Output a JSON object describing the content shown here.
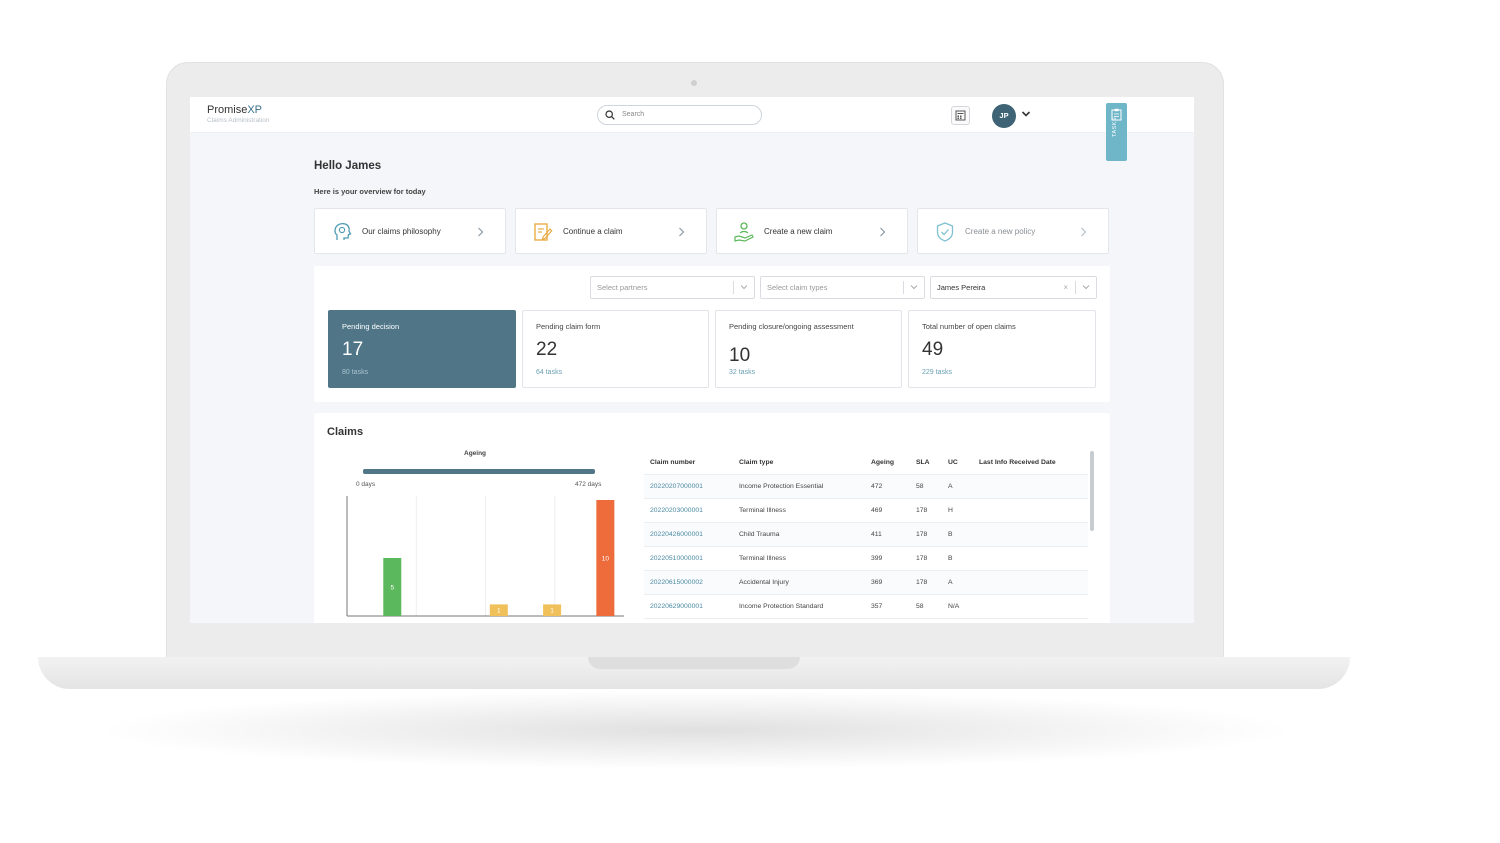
{
  "header": {
    "brand_main": "Promise",
    "brand_accent": "XP",
    "brand_sub": "Claims Administration",
    "search_placeholder": "Search",
    "avatar_initials": "JP",
    "tasks_tab": "TASKS"
  },
  "greeting": "Hello James",
  "overview": "Here is your overview for today",
  "actions": [
    {
      "label": "Our claims philosophy",
      "icon": "brain-head-icon"
    },
    {
      "label": "Continue a claim",
      "icon": "edit-document-icon"
    },
    {
      "label": "Create a new claim",
      "icon": "hand-person-icon"
    },
    {
      "label": "Create a new policy",
      "icon": "shield-check-icon"
    }
  ],
  "filters": {
    "partners_placeholder": "Select partners",
    "claim_types_placeholder": "Select claim types",
    "assignee_value": "James Pereira",
    "clear_symbol": "×"
  },
  "stats": [
    {
      "label": "Pending decision",
      "value": "17",
      "tasks": "80 tasks"
    },
    {
      "label": "Pending claim form",
      "value": "22",
      "tasks": "64 tasks"
    },
    {
      "label": "Pending closure/ongoing assessment",
      "value": "10",
      "tasks": "32 tasks"
    },
    {
      "label": "Total number of open claims",
      "value": "49",
      "tasks": "229 tasks"
    }
  ],
  "claims": {
    "title": "Claims",
    "ageing_label": "Ageing",
    "ageing_min": "0 days",
    "ageing_max": "472 days",
    "table": {
      "headers": [
        "Claim number",
        "Claim type",
        "Ageing",
        "SLA",
        "UC",
        "Last Info Received Date"
      ],
      "rows": [
        [
          "20220207000001",
          "Income Protection Essential",
          "472",
          "58",
          "A",
          ""
        ],
        [
          "20220203000001",
          "Terminal Illness",
          "469",
          "178",
          "H",
          ""
        ],
        [
          "20220426000001",
          "Child Trauma",
          "411",
          "178",
          "B",
          ""
        ],
        [
          "20220510000001",
          "Terminal Illness",
          "399",
          "178",
          "B",
          ""
        ],
        [
          "20220615000002",
          "Accidental Injury",
          "369",
          "178",
          "A",
          ""
        ],
        [
          "20220629000001",
          "Income Protection Standard",
          "357",
          "58",
          "N/A",
          ""
        ]
      ]
    }
  },
  "chart_data": {
    "type": "bar",
    "values": [
      5,
      0,
      1,
      1,
      10
    ],
    "data_labels": [
      "5",
      "",
      "1",
      "1",
      "10"
    ],
    "colors": [
      "#5cb85c",
      "#f0c05a",
      "#f0c05a",
      "#f0c05a",
      "#ee6b3b"
    ],
    "ylim": [
      0,
      10
    ]
  },
  "colors": {
    "accent": "#4f7587",
    "link": "#4a8aa3",
    "tasks_tab": "#6fb6c9"
  }
}
